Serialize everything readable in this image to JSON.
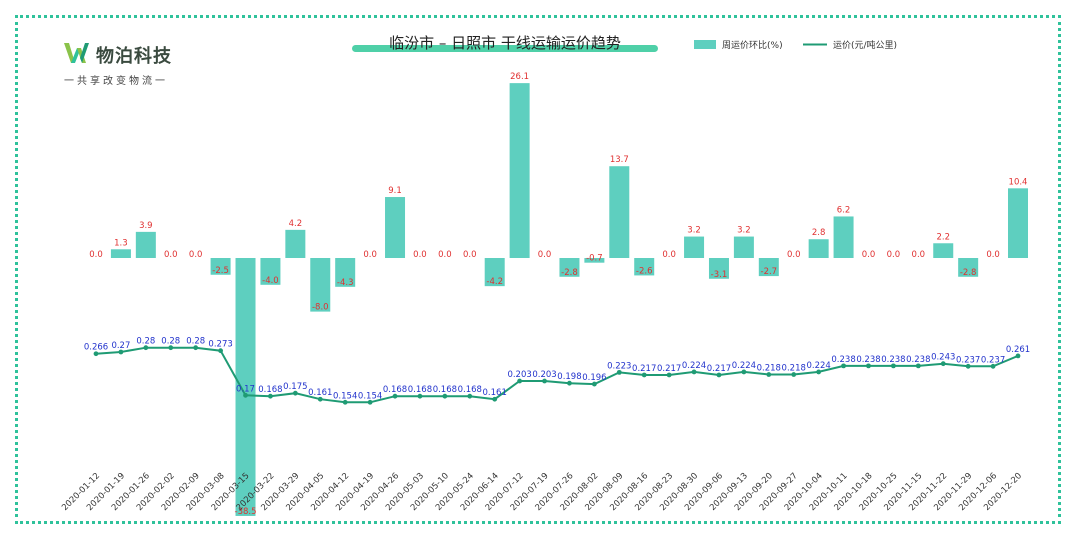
{
  "logo": {
    "name": "物泊科技",
    "slogan": "一共享改变物流一"
  },
  "chart_data": {
    "type": "bar+line",
    "title": "临汾市 – 日照市 干线运输运价趋势",
    "legend": {
      "bar": "周运价环比(%)",
      "line": "运价(元/吨公里)",
      "position": "top-right"
    },
    "colors": {
      "bar": "#5ecfbf",
      "line": "#1f9b74",
      "bar_label": "#e03030",
      "line_label": "#2233cc",
      "frame": "#2fc29b"
    },
    "categories": [
      "2020-01-12",
      "2020-01-19",
      "2020-01-26",
      "2020-02-02",
      "2020-02-09",
      "2020-03-08",
      "2020-03-15",
      "2020-03-22",
      "2020-03-29",
      "2020-04-05",
      "2020-04-12",
      "2020-04-19",
      "2020-04-26",
      "2020-05-03",
      "2020-05-10",
      "2020-05-24",
      "2020-06-14",
      "2020-07-12",
      "2020-07-19",
      "2020-07-26",
      "2020-08-02",
      "2020-08-09",
      "2020-08-16",
      "2020-08-23",
      "2020-08-30",
      "2020-09-06",
      "2020-09-13",
      "2020-09-20",
      "2020-09-27",
      "2020-10-04",
      "2020-10-11",
      "2020-10-18",
      "2020-10-25",
      "2020-11-15",
      "2020-11-22",
      "2020-11-29",
      "2020-12-06",
      "2020-12-20"
    ],
    "bar_series": {
      "name": "周运价环比(%)",
      "values": [
        0.0,
        1.3,
        3.9,
        0.0,
        0.0,
        -2.5,
        -38.5,
        -4.0,
        4.2,
        -8.0,
        -4.3,
        0.0,
        9.1,
        0.0,
        0.0,
        0.0,
        -4.2,
        26.1,
        0.0,
        -2.8,
        -0.7,
        13.7,
        -2.6,
        0.0,
        3.2,
        -3.1,
        3.2,
        -2.7,
        0.0,
        2.8,
        6.2,
        0.0,
        0.0,
        0.0,
        2.2,
        -2.8,
        0.0,
        10.4
      ],
      "labels": [
        "0.0",
        "1.3",
        "3.9",
        "0.0",
        "0.0",
        "-2.5",
        "-38.5",
        "-4.0",
        "4.2",
        "-8.0",
        "-4.3",
        "0.0",
        "9.1",
        "0.0",
        "0.0",
        "0.0",
        "-4.2",
        "26.1",
        "0.0",
        "-2.8",
        "-0.7",
        "13.7",
        "-2.6",
        "0.0",
        "3.2",
        "-3.1",
        "3.2",
        "-2.7",
        "0.0",
        "2.8",
        "6.2",
        "0.0",
        "0.0",
        "0.0",
        "2.2",
        "-2.8",
        "0.0",
        "10.4"
      ]
    },
    "line_series": {
      "name": "运价(元/吨公里)",
      "values": [
        0.266,
        0.27,
        0.28,
        0.28,
        0.28,
        0.273,
        0.17,
        0.168,
        0.175,
        0.161,
        0.154,
        0.154,
        0.168,
        0.168,
        0.168,
        0.168,
        0.161,
        0.203,
        0.203,
        0.198,
        0.196,
        0.223,
        0.217,
        0.217,
        0.224,
        0.217,
        0.224,
        0.218,
        0.218,
        0.224,
        0.238,
        0.238,
        0.238,
        0.238,
        0.243,
        0.237,
        0.237,
        0.261
      ],
      "labels": [
        "0.266",
        "0.27",
        "0.28",
        "0.28",
        "0.28",
        "0.273",
        "0.17",
        "0.168",
        "0.175",
        "0.161",
        "0.154",
        "0.154",
        "0.168",
        "0.168",
        "0.168",
        "0.168",
        "0.161",
        "0.203",
        "0.203",
        "0.198",
        "0.196",
        "0.223",
        "0.217",
        "0.217",
        "0.224",
        "0.217",
        "0.224",
        "0.218",
        "0.218",
        "0.224",
        "0.238",
        "0.238",
        "0.238",
        "0.238",
        "0.243",
        "0.237",
        "0.237",
        "0.261"
      ]
    }
  }
}
